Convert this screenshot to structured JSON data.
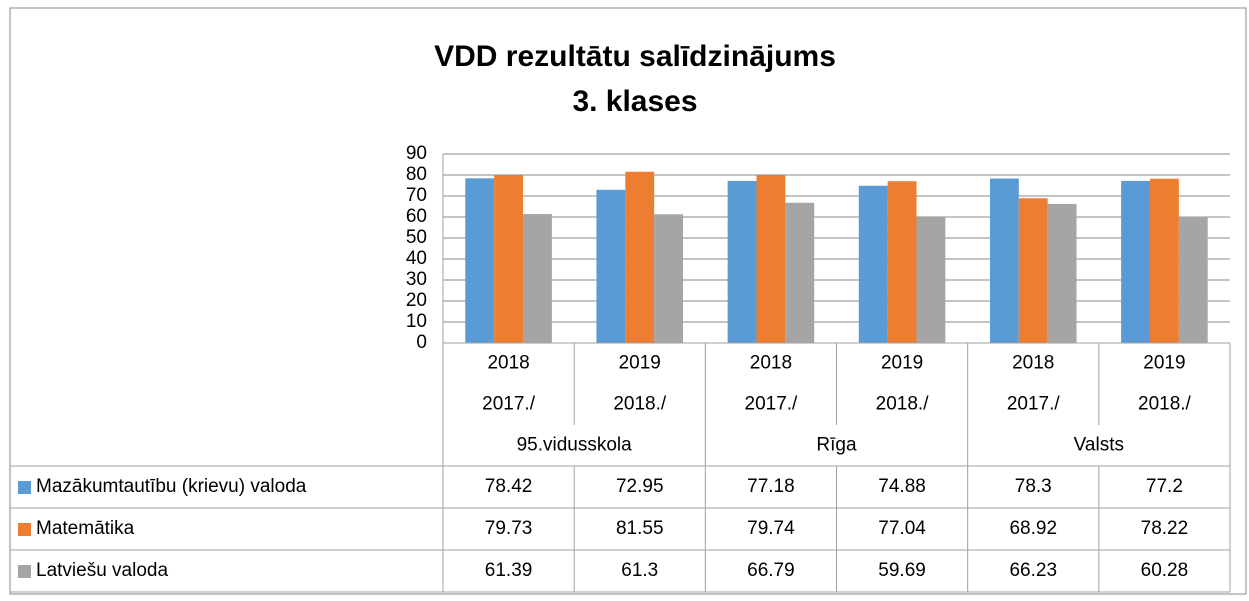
{
  "chart_data": {
    "type": "bar",
    "title": "VDD rezultātu salīdzinājums",
    "subtitle": "3. klases",
    "categories": [
      {
        "line1": "2018",
        "line2": "2017./"
      },
      {
        "line1": "2019",
        "line2": "2018./"
      },
      {
        "line1": "2018",
        "line2": "2017./"
      },
      {
        "line1": "2019",
        "line2": "2018./"
      },
      {
        "line1": "2018",
        "line2": "2017./"
      },
      {
        "line1": "2019",
        "line2": "2018./"
      }
    ],
    "groups": [
      "95.vidusskola",
      "Rīga",
      "Valsts"
    ],
    "series": [
      {
        "name": "Mazākumtautību (krievu) valoda",
        "color": "#5b9bd5",
        "values": [
          78.42,
          72.95,
          77.18,
          74.88,
          78.3,
          77.2
        ]
      },
      {
        "name": "Matemātika",
        "color": "#ed7d31",
        "values": [
          79.73,
          81.55,
          79.74,
          77.04,
          68.92,
          78.22
        ]
      },
      {
        "name": "Latviešu valoda",
        "color": "#a5a5a5",
        "values": [
          61.39,
          61.3,
          66.79,
          59.69,
          66.23,
          60.28
        ]
      }
    ],
    "ylim": [
      0,
      90
    ],
    "yticks": [
      0,
      10,
      20,
      30,
      40,
      50,
      60,
      70,
      80,
      90
    ],
    "grid": true
  }
}
